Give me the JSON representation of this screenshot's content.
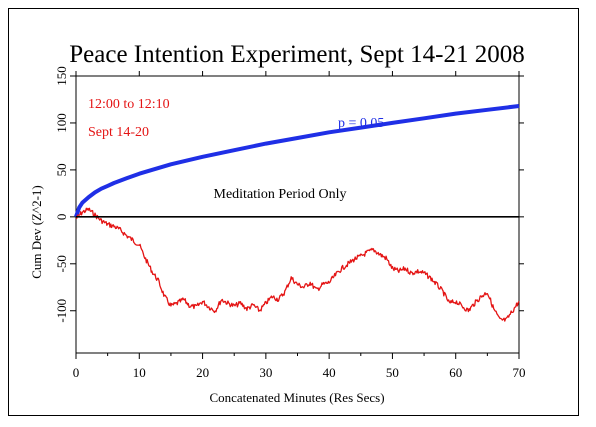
{
  "chart_data": {
    "type": "line",
    "title": "Peace Intention Experiment, Sept 14-21 2008",
    "xlabel": "Concatenated Minutes (Res Secs)",
    "ylabel": "Cum Dev (Z^2-1)",
    "xlim": [
      0,
      70
    ],
    "ylim": [
      -145,
      150
    ],
    "xticks": [
      0,
      10,
      20,
      30,
      40,
      50,
      60,
      70
    ],
    "yticks": [
      -100,
      -50,
      0,
      50,
      100,
      150
    ],
    "grid": false,
    "annotations": {
      "time_window": "12:00 to 12:10",
      "dates": "Sept 14-20",
      "meditation_note": "Meditation Period Only",
      "p_label": "p = 0.05"
    },
    "series": [
      {
        "role": "significance envelope",
        "color": "#1f2fe6",
        "x": [
          0,
          0.5,
          1,
          2,
          3,
          4,
          5,
          6,
          8,
          10,
          12,
          15,
          20,
          25,
          30,
          35,
          40,
          45,
          50,
          55,
          60,
          65,
          70
        ],
        "values": [
          0,
          10,
          15,
          21,
          26,
          30,
          33,
          36,
          41,
          46,
          50,
          56,
          64,
          71,
          78,
          84,
          90,
          95,
          100,
          105,
          110,
          114,
          118
        ]
      },
      {
        "role": "cumulative deviation",
        "color": "#e41414",
        "x": [
          0,
          1,
          2,
          3,
          4,
          5,
          6,
          7,
          8,
          9,
          10,
          11,
          12,
          13,
          14,
          15,
          16,
          17,
          18,
          19,
          20,
          21,
          22,
          23,
          24,
          25,
          26,
          27,
          28,
          29,
          30,
          31,
          32,
          33,
          34,
          35,
          36,
          37,
          38,
          39,
          40,
          41,
          42,
          43,
          44,
          45,
          46,
          47,
          48,
          49,
          50,
          51,
          52,
          53,
          54,
          55,
          56,
          57,
          58,
          59,
          60,
          61,
          62,
          63,
          64,
          65,
          66,
          67,
          68,
          69,
          70
        ],
        "values": [
          -2,
          5,
          8,
          2,
          -4,
          -8,
          -10,
          -14,
          -20,
          -25,
          -30,
          -45,
          -58,
          -68,
          -85,
          -95,
          -92,
          -88,
          -95,
          -96,
          -90,
          -96,
          -100,
          -88,
          -92,
          -95,
          -92,
          -98,
          -94,
          -100,
          -92,
          -85,
          -88,
          -80,
          -65,
          -72,
          -75,
          -70,
          -78,
          -72,
          -70,
          -62,
          -55,
          -50,
          -45,
          -42,
          -38,
          -35,
          -40,
          -44,
          -55,
          -58,
          -55,
          -60,
          -58,
          -60,
          -65,
          -72,
          -80,
          -92,
          -90,
          -95,
          -100,
          -92,
          -85,
          -80,
          -98,
          -110,
          -110,
          -100,
          -90
        ]
      },
      {
        "role": "zero line",
        "color": "#000000",
        "x": [
          0,
          70
        ],
        "values": [
          0,
          0
        ]
      }
    ]
  }
}
